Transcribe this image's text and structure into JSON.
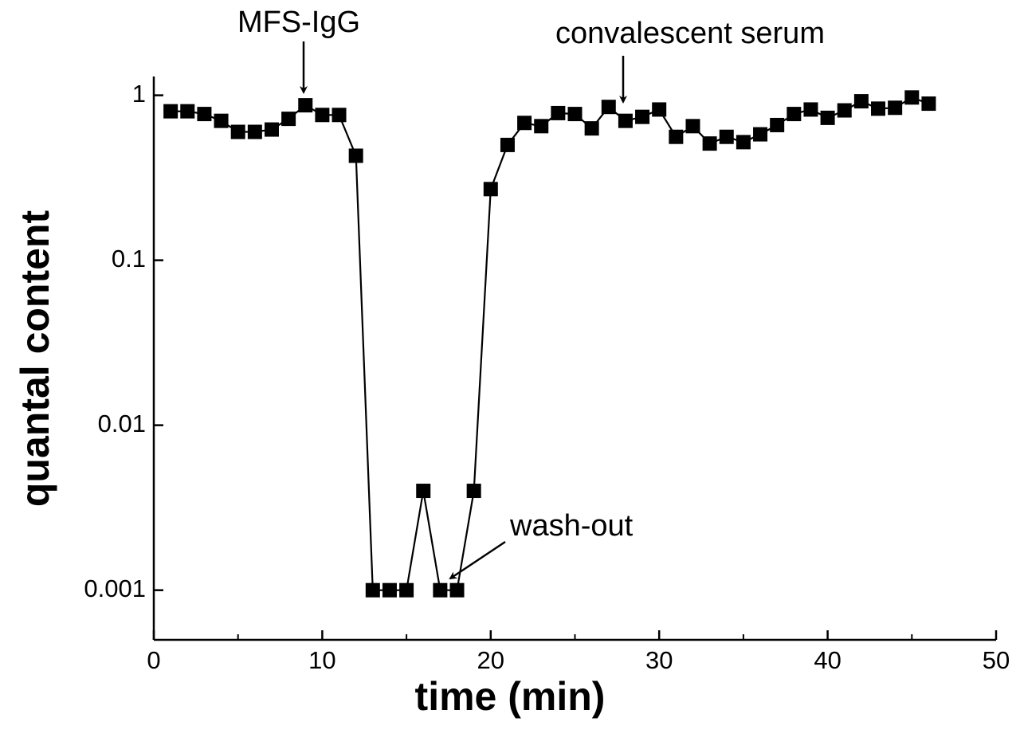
{
  "chart_data": {
    "type": "scatter-line",
    "x_label": "time (min)",
    "y_label": "quantal content",
    "x": [
      1,
      2,
      3,
      4,
      5,
      6,
      7,
      8,
      9,
      10,
      11,
      12,
      13,
      14,
      15,
      16,
      17,
      18,
      19,
      20,
      21,
      22,
      23,
      24,
      25,
      26,
      27,
      28,
      29,
      30,
      31,
      32,
      33,
      34,
      35,
      36,
      37,
      38,
      39,
      40,
      41,
      42,
      43,
      44,
      45,
      46
    ],
    "values": [
      0.8,
      0.8,
      0.77,
      0.7,
      0.6,
      0.6,
      0.62,
      0.72,
      0.87,
      0.76,
      0.76,
      0.43,
      0.001,
      0.001,
      0.001,
      0.004,
      0.001,
      0.001,
      0.004,
      0.27,
      0.5,
      0.68,
      0.65,
      0.78,
      0.77,
      0.63,
      0.85,
      0.7,
      0.74,
      0.82,
      0.56,
      0.65,
      0.51,
      0.56,
      0.52,
      0.58,
      0.66,
      0.77,
      0.82,
      0.73,
      0.81,
      0.92,
      0.83,
      0.84,
      0.97,
      0.89
    ],
    "color": "#000000",
    "xlim": [
      0,
      50
    ],
    "xticks": [
      0,
      10,
      20,
      30,
      40,
      50
    ],
    "xminorticks": [
      5,
      15,
      25,
      35,
      45
    ],
    "ylim": [
      0.0005,
      1.3
    ],
    "yticks": [
      0.001,
      0.01,
      0.1,
      1
    ],
    "log_y": true,
    "annotations": [
      "MFS-IgG",
      "convalescent serum",
      "wash-out"
    ]
  }
}
